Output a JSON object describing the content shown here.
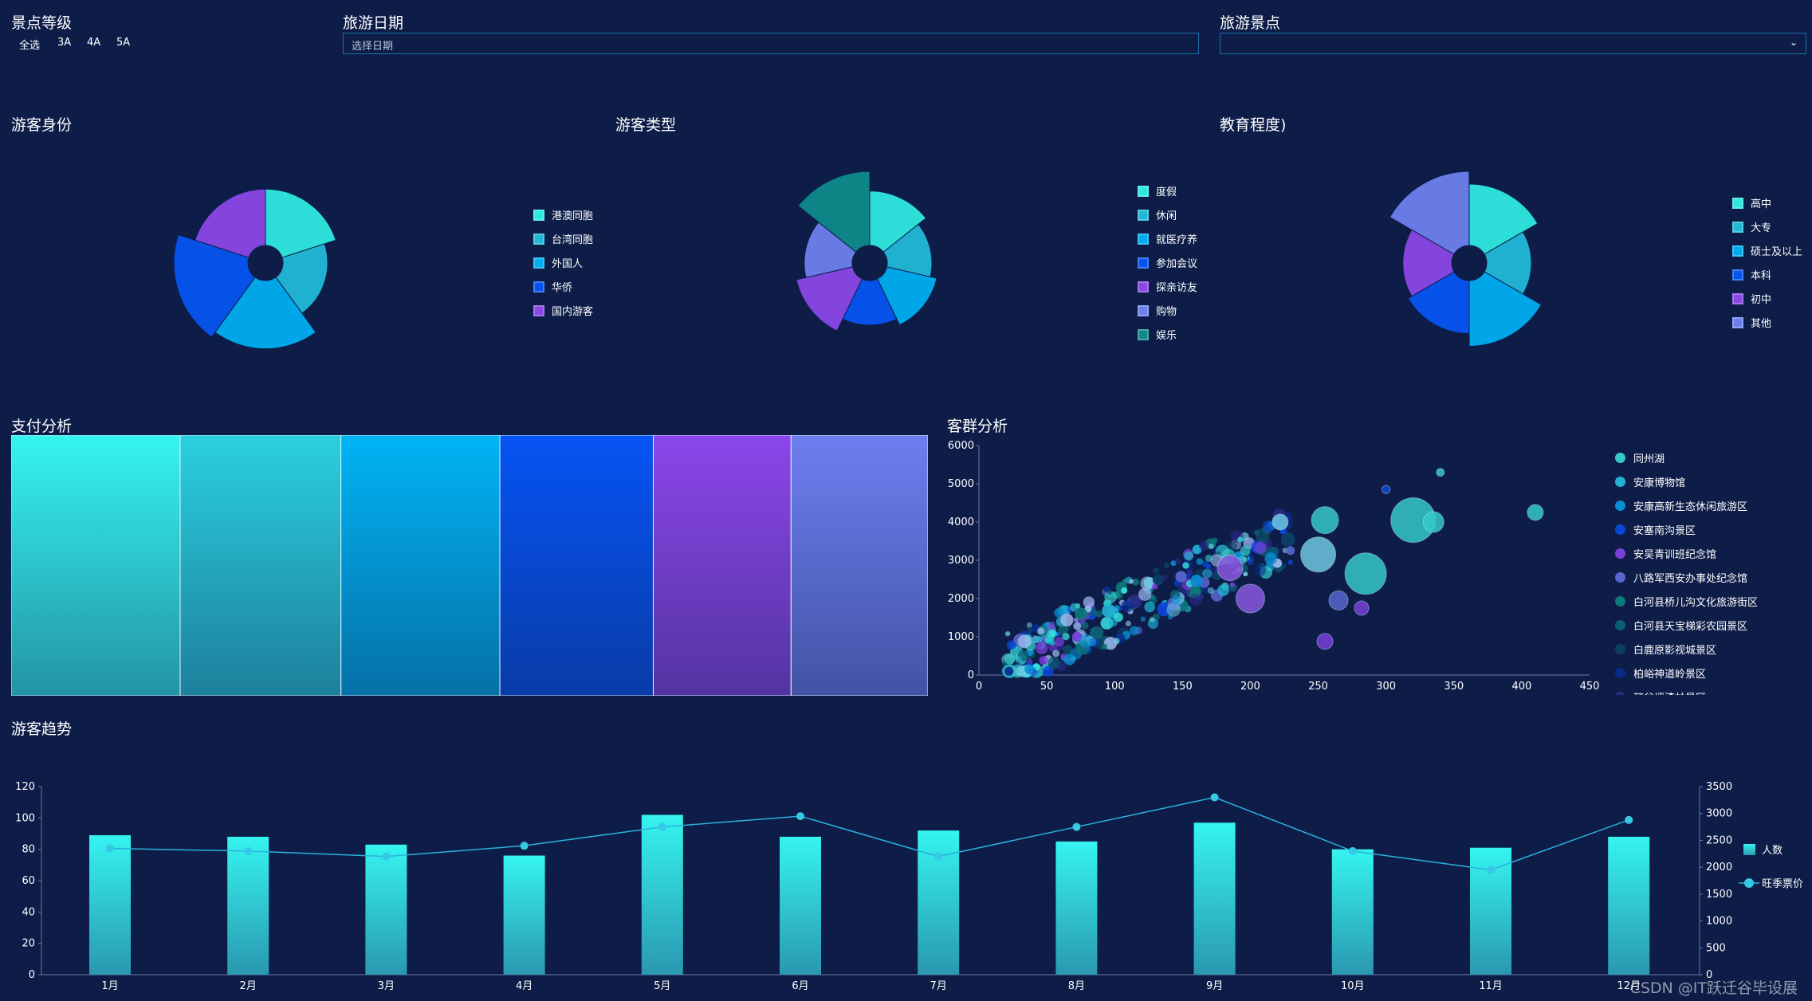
{
  "filters": {
    "level": {
      "title": "景点等级",
      "options": [
        "全选",
        "3A",
        "4A",
        "5A"
      ]
    },
    "date": {
      "title": "旅游日期",
      "placeholder": "选择日期"
    },
    "spot": {
      "title": "旅游景点",
      "value": ""
    }
  },
  "pies": [
    {
      "title": "游客身份",
      "slices": [
        {
          "label": "港澳同胞",
          "value": 30,
          "color": "#2ee8e0"
        },
        {
          "label": "台湾同胞",
          "value": 28,
          "color": "#22b8d8"
        },
        {
          "label": "外国人",
          "value": 32,
          "color": "#00aef0"
        },
        {
          "label": "华侨",
          "value": 33,
          "color": "#0654f0"
        },
        {
          "label": "国内游客",
          "value": 30,
          "color": "#8a48e6"
        }
      ]
    },
    {
      "title": "游客类型",
      "slices": [
        {
          "label": "度假",
          "value": 24,
          "color": "#2ee8e0"
        },
        {
          "label": "休闲",
          "value": 21,
          "color": "#22b8d8"
        },
        {
          "label": "就医疗养",
          "value": 23,
          "color": "#00aef0"
        },
        {
          "label": "参加会议",
          "value": 21,
          "color": "#0654f0"
        },
        {
          "label": "探亲访友",
          "value": 25,
          "color": "#8a48e6"
        },
        {
          "label": "购物",
          "value": 22,
          "color": "#6d80ec"
        },
        {
          "label": "娱乐",
          "value": 30,
          "color": "#0f8a8a"
        }
      ]
    },
    {
      "title": "教育程度)",
      "slices": [
        {
          "label": "高中",
          "value": 27,
          "color": "#2ee8e0"
        },
        {
          "label": "大专",
          "value": 23,
          "color": "#22b8d8"
        },
        {
          "label": "硕士及以上",
          "value": 28,
          "color": "#00aef0"
        },
        {
          "label": "本科",
          "value": 25,
          "color": "#0654f0"
        },
        {
          "label": "初中",
          "value": 24,
          "color": "#8a48e6"
        },
        {
          "label": "其他",
          "value": 30,
          "color": "#6d80ec"
        }
      ]
    }
  ],
  "payment": {
    "title": "支付分析",
    "blocks": [
      {
        "value": 184,
        "color": "#35f4f0"
      },
      {
        "value": 175,
        "color": "#2ad0e0"
      },
      {
        "value": 173,
        "color": "#00b4f4"
      },
      {
        "value": 167,
        "color": "#0654f4"
      },
      {
        "value": 150,
        "color": "#8c46ea"
      },
      {
        "value": 149,
        "color": "#6d7ff0"
      }
    ]
  },
  "cluster": {
    "title": "客群分析",
    "xticks": [
      "0",
      "50",
      "100",
      "150",
      "200",
      "250",
      "300",
      "350",
      "400",
      "450"
    ],
    "yticks": [
      "0",
      "1000",
      "2000",
      "3000",
      "4000",
      "5000",
      "6000"
    ],
    "xmax": 450,
    "ymax": 6000,
    "legend": [
      {
        "label": "同州湖",
        "color": "#36c9c9"
      },
      {
        "label": "安康博物馆",
        "color": "#22b3d3"
      },
      {
        "label": "安康高新生态休闲旅游区",
        "color": "#0a8ed3"
      },
      {
        "label": "安塞南沟景区",
        "color": "#0b46d8"
      },
      {
        "label": "安吴青训班纪念馆",
        "color": "#7a3fd9"
      },
      {
        "label": "八路军西安办事处纪念馆",
        "color": "#5866cf"
      },
      {
        "label": "白河县桥儿沟文化旅游街区",
        "color": "#0d7a7a"
      },
      {
        "label": "白河县天宝梯彩农园景区",
        "color": "#0c5d73"
      },
      {
        "label": "白鹿原影视城景区",
        "color": "#0b3f66"
      },
      {
        "label": "柏峪神道岭景区",
        "color": "#0a2a8a"
      },
      {
        "label": "秤谷坪漆林景区",
        "color": "#2a2a8a"
      }
    ],
    "highlights": [
      {
        "x": 320,
        "y": 4050,
        "size": 28,
        "color": "#36c9c9"
      },
      {
        "x": 285,
        "y": 2650,
        "size": 26,
        "color": "#36c9c9"
      },
      {
        "x": 250,
        "y": 3150,
        "size": 22,
        "color": "#6fc7e0"
      },
      {
        "x": 255,
        "y": 4050,
        "size": 17,
        "color": "#36c9c9"
      },
      {
        "x": 335,
        "y": 4000,
        "size": 13,
        "color": "#36c9c9"
      },
      {
        "x": 410,
        "y": 4250,
        "size": 10,
        "color": "#36c9c9"
      },
      {
        "x": 340,
        "y": 5300,
        "size": 5,
        "color": "#36c9c9"
      },
      {
        "x": 265,
        "y": 1950,
        "size": 12,
        "color": "#5866cf"
      },
      {
        "x": 282,
        "y": 1750,
        "size": 9,
        "color": "#7a3fd9"
      },
      {
        "x": 255,
        "y": 880,
        "size": 10,
        "color": "#7a3fd9"
      },
      {
        "x": 200,
        "y": 2000,
        "size": 18,
        "color": "#8a58e0"
      },
      {
        "x": 185,
        "y": 2800,
        "size": 16,
        "color": "#8a58e0"
      },
      {
        "x": 300,
        "y": 4850,
        "size": 5,
        "color": "#0b46d8"
      },
      {
        "x": 222,
        "y": 4000,
        "size": 10,
        "color": "#6fc7e0"
      }
    ]
  },
  "trend": {
    "title": "游客趋势",
    "months": [
      "1月",
      "2月",
      "3月",
      "4月",
      "5月",
      "6月",
      "7月",
      "8月",
      "9月",
      "10月",
      "11月",
      "12月"
    ],
    "people": [
      89,
      88,
      83,
      76,
      102,
      88,
      92,
      85,
      97,
      80,
      81,
      88
    ],
    "price": [
      2350,
      2300,
      2200,
      2400,
      2750,
      2950,
      2200,
      2750,
      3300,
      2300,
      1950,
      2880
    ],
    "y_left_ticks": [
      "0",
      "20",
      "40",
      "60",
      "80",
      "100",
      "120"
    ],
    "y_right_ticks": [
      "0",
      "500",
      "1000",
      "1500",
      "2000",
      "2500",
      "3000",
      "3500"
    ],
    "y_left_max": 120,
    "y_right_max": 3500,
    "legend": [
      "人数",
      "旺季票价"
    ],
    "colors": {
      "bar_top": "#35f4f0",
      "bar_bottom": "#2a98b0",
      "line": "#2ab2dc",
      "dot": "#36c9e6"
    }
  },
  "watermark": "CSDN @IT跃迁谷毕设展"
}
